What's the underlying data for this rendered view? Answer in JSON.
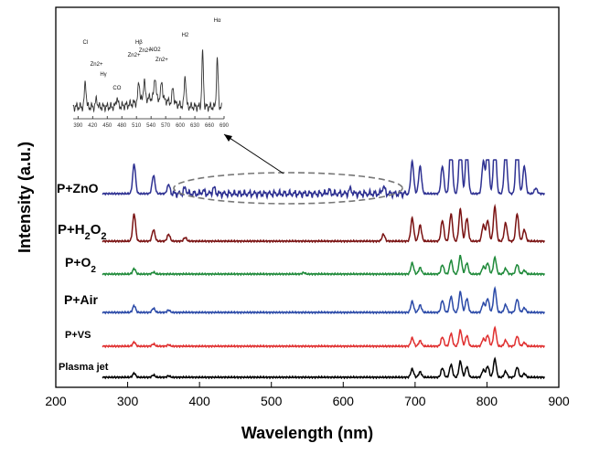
{
  "chart_data": {
    "type": "line",
    "xlabel": "Wavelength (nm)",
    "ylabel": "Intensity (a.u.)",
    "xlim": [
      200,
      900
    ],
    "xticks": [
      200,
      300,
      400,
      500,
      600,
      700,
      800,
      900
    ],
    "series": [
      {
        "name": "Plasma jet",
        "label_parts": [
          [
            "Plasma jet",
            ""
          ]
        ],
        "color": "#000000",
        "baseline": 0.0,
        "peaks": [
          [
            309,
            0.9
          ],
          [
            336,
            0.5
          ],
          [
            357,
            0.3
          ],
          [
            696,
            1.8
          ],
          [
            707,
            1.2
          ],
          [
            738,
            2.0
          ],
          [
            750,
            2.8
          ],
          [
            763,
            3.5
          ],
          [
            772,
            2.3
          ],
          [
            795,
            1.6
          ],
          [
            801,
            2.4
          ],
          [
            811,
            4.0
          ],
          [
            826,
            1.3
          ],
          [
            842,
            2.2
          ],
          [
            852,
            0.8
          ]
        ]
      },
      {
        "name": "P+VS",
        "label_parts": [
          [
            "P+VS",
            ""
          ]
        ],
        "color": "#e03030",
        "baseline": 0.0,
        "peaks": [
          [
            309,
            0.9
          ],
          [
            336,
            0.5
          ],
          [
            357,
            0.3
          ],
          [
            696,
            1.8
          ],
          [
            707,
            1.2
          ],
          [
            738,
            2.0
          ],
          [
            750,
            2.8
          ],
          [
            763,
            3.5
          ],
          [
            772,
            2.3
          ],
          [
            795,
            1.6
          ],
          [
            801,
            2.4
          ],
          [
            811,
            4.0
          ],
          [
            826,
            1.3
          ],
          [
            842,
            2.2
          ],
          [
            852,
            0.8
          ]
        ]
      },
      {
        "name": "P+Air",
        "label_parts": [
          [
            "P+Air",
            ""
          ]
        ],
        "color": "#2b4aa8",
        "baseline": 0.0,
        "peaks": [
          [
            309,
            1.5
          ],
          [
            336,
            0.9
          ],
          [
            357,
            0.5
          ],
          [
            696,
            2.4
          ],
          [
            707,
            1.6
          ],
          [
            738,
            2.6
          ],
          [
            750,
            3.5
          ],
          [
            763,
            4.5
          ],
          [
            772,
            3.0
          ],
          [
            795,
            2.0
          ],
          [
            801,
            3.0
          ],
          [
            811,
            5.2
          ],
          [
            826,
            1.7
          ],
          [
            842,
            2.9
          ],
          [
            852,
            1.0
          ]
        ]
      },
      {
        "name": "P+O2",
        "label_parts": [
          [
            "P+O",
            ""
          ],
          [
            "2",
            "sub"
          ]
        ],
        "color": "#1f8a3a",
        "baseline": 0.0,
        "peaks": [
          [
            309,
            1.2
          ],
          [
            336,
            0.4
          ],
          [
            545,
            0.3
          ],
          [
            696,
            2.4
          ],
          [
            707,
            1.4
          ],
          [
            738,
            2.0
          ],
          [
            750,
            3.0
          ],
          [
            763,
            4.0
          ],
          [
            772,
            2.4
          ],
          [
            795,
            1.6
          ],
          [
            801,
            2.4
          ],
          [
            811,
            3.6
          ],
          [
            826,
            1.2
          ],
          [
            842,
            2.1
          ],
          [
            852,
            0.8
          ]
        ]
      },
      {
        "name": "P+H2O2",
        "label_parts": [
          [
            "P+H",
            ""
          ],
          [
            "2",
            "sub"
          ],
          [
            "O",
            ""
          ],
          [
            "2",
            "sub"
          ]
        ],
        "color": "#7a1212",
        "baseline": 0.0,
        "peaks": [
          [
            309,
            6.0
          ],
          [
            336,
            2.5
          ],
          [
            357,
            1.5
          ],
          [
            380,
            0.8
          ],
          [
            656,
            1.5
          ],
          [
            696,
            5.0
          ],
          [
            707,
            3.5
          ],
          [
            738,
            4.5
          ],
          [
            750,
            6.0
          ],
          [
            763,
            7.0
          ],
          [
            772,
            5.0
          ],
          [
            795,
            3.5
          ],
          [
            801,
            4.5
          ],
          [
            811,
            7.5
          ],
          [
            826,
            4.0
          ],
          [
            842,
            6.0
          ],
          [
            852,
            2.5
          ]
        ]
      },
      {
        "name": "P+ZnO",
        "label_parts": [
          [
            "P+ZnO",
            ""
          ]
        ],
        "color": "#2e3192",
        "baseline": 0.6,
        "peaks": [
          [
            309,
            6.5
          ],
          [
            336,
            4.0
          ],
          [
            357,
            2.0
          ],
          [
            380,
            1.2
          ],
          [
            405,
            0.6
          ],
          [
            420,
            1.2
          ],
          [
            580,
            0.6
          ],
          [
            610,
            1.0
          ],
          [
            656,
            1.5
          ],
          [
            696,
            7.0
          ],
          [
            707,
            6.0
          ],
          [
            738,
            6.0
          ],
          [
            750,
            12.0
          ],
          [
            763,
            12.0
          ],
          [
            772,
            10.0
          ],
          [
            795,
            7.0
          ],
          [
            801,
            10.0
          ],
          [
            811,
            12.0
          ],
          [
            826,
            10.0
          ],
          [
            842,
            12.0
          ],
          [
            852,
            6.0
          ],
          [
            868,
            1.2
          ]
        ]
      }
    ],
    "inset": {
      "x_ticks": [
        390,
        420,
        450,
        480,
        510,
        540,
        570,
        600,
        630,
        660,
        690
      ],
      "annotations": [
        "Cl",
        "Zn2+",
        "Hγ",
        "CO",
        "Hβ",
        "Zn2+",
        "Zn2+",
        "NO2",
        "Zn2+",
        "H2",
        "Hα"
      ]
    }
  }
}
